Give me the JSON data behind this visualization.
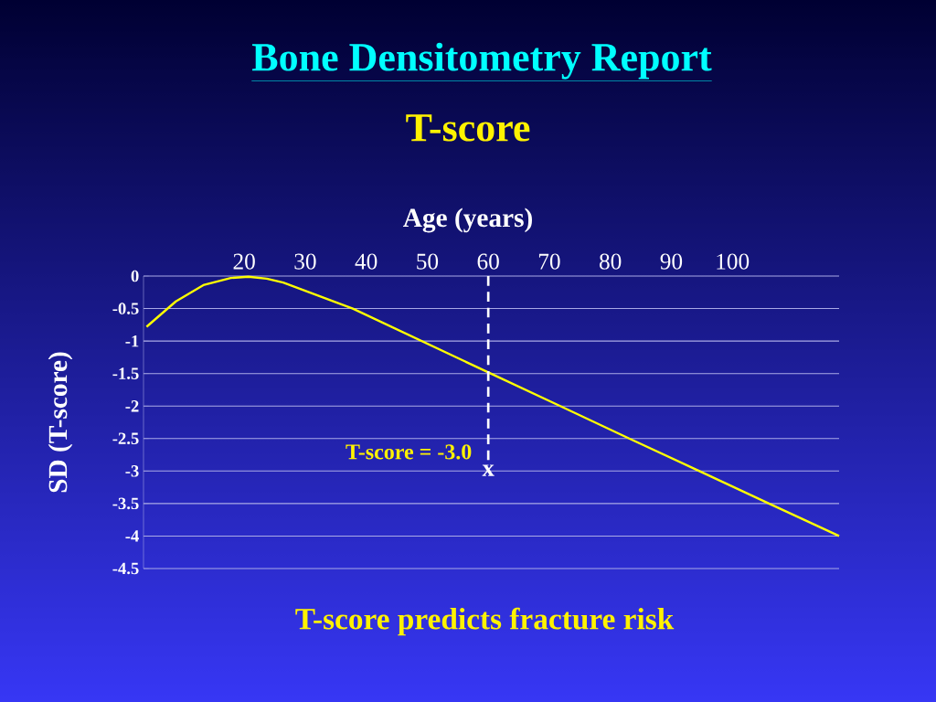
{
  "chart_data": {
    "type": "line",
    "title": "Bone Densitometry Report",
    "subtitle": "T-score",
    "xlabel": "Age (years)",
    "ylabel": "SD (T-score)",
    "x": [
      4,
      8.8,
      13.3,
      17.8,
      20.7,
      23.7,
      26.4,
      37.8,
      49.1,
      60.4,
      71.8,
      83.1,
      94.6,
      106,
      117.5
    ],
    "series": [
      {
        "color": "#ffff00",
        "values": [
          -0.78,
          -0.39,
          -0.14,
          -0.03,
          -0.01,
          -0.04,
          -0.1,
          -0.5,
          -1.0,
          -1.5,
          -2.0,
          -2.5,
          -3.0,
          -3.5,
          -4.0
        ]
      }
    ],
    "xlim": [
      3.5,
      117.5
    ],
    "xticks": [
      20,
      30,
      40,
      50,
      60,
      70,
      80,
      90,
      100
    ],
    "ylim": [
      -4.5,
      0
    ],
    "yticks": [
      0,
      -0.5,
      -1,
      -1.5,
      -2,
      -2.5,
      -3,
      -3.5,
      -4,
      -4.5
    ],
    "grid": "y",
    "marker": "none",
    "line_style": "solid",
    "ref_lines": [
      {
        "axis": "x",
        "value": 60,
        "color": "#ffffff",
        "line_style": "dashed"
      }
    ],
    "annotations": [
      "T-score = -3.0",
      "x",
      "T-score predicts fracture risk"
    ]
  }
}
